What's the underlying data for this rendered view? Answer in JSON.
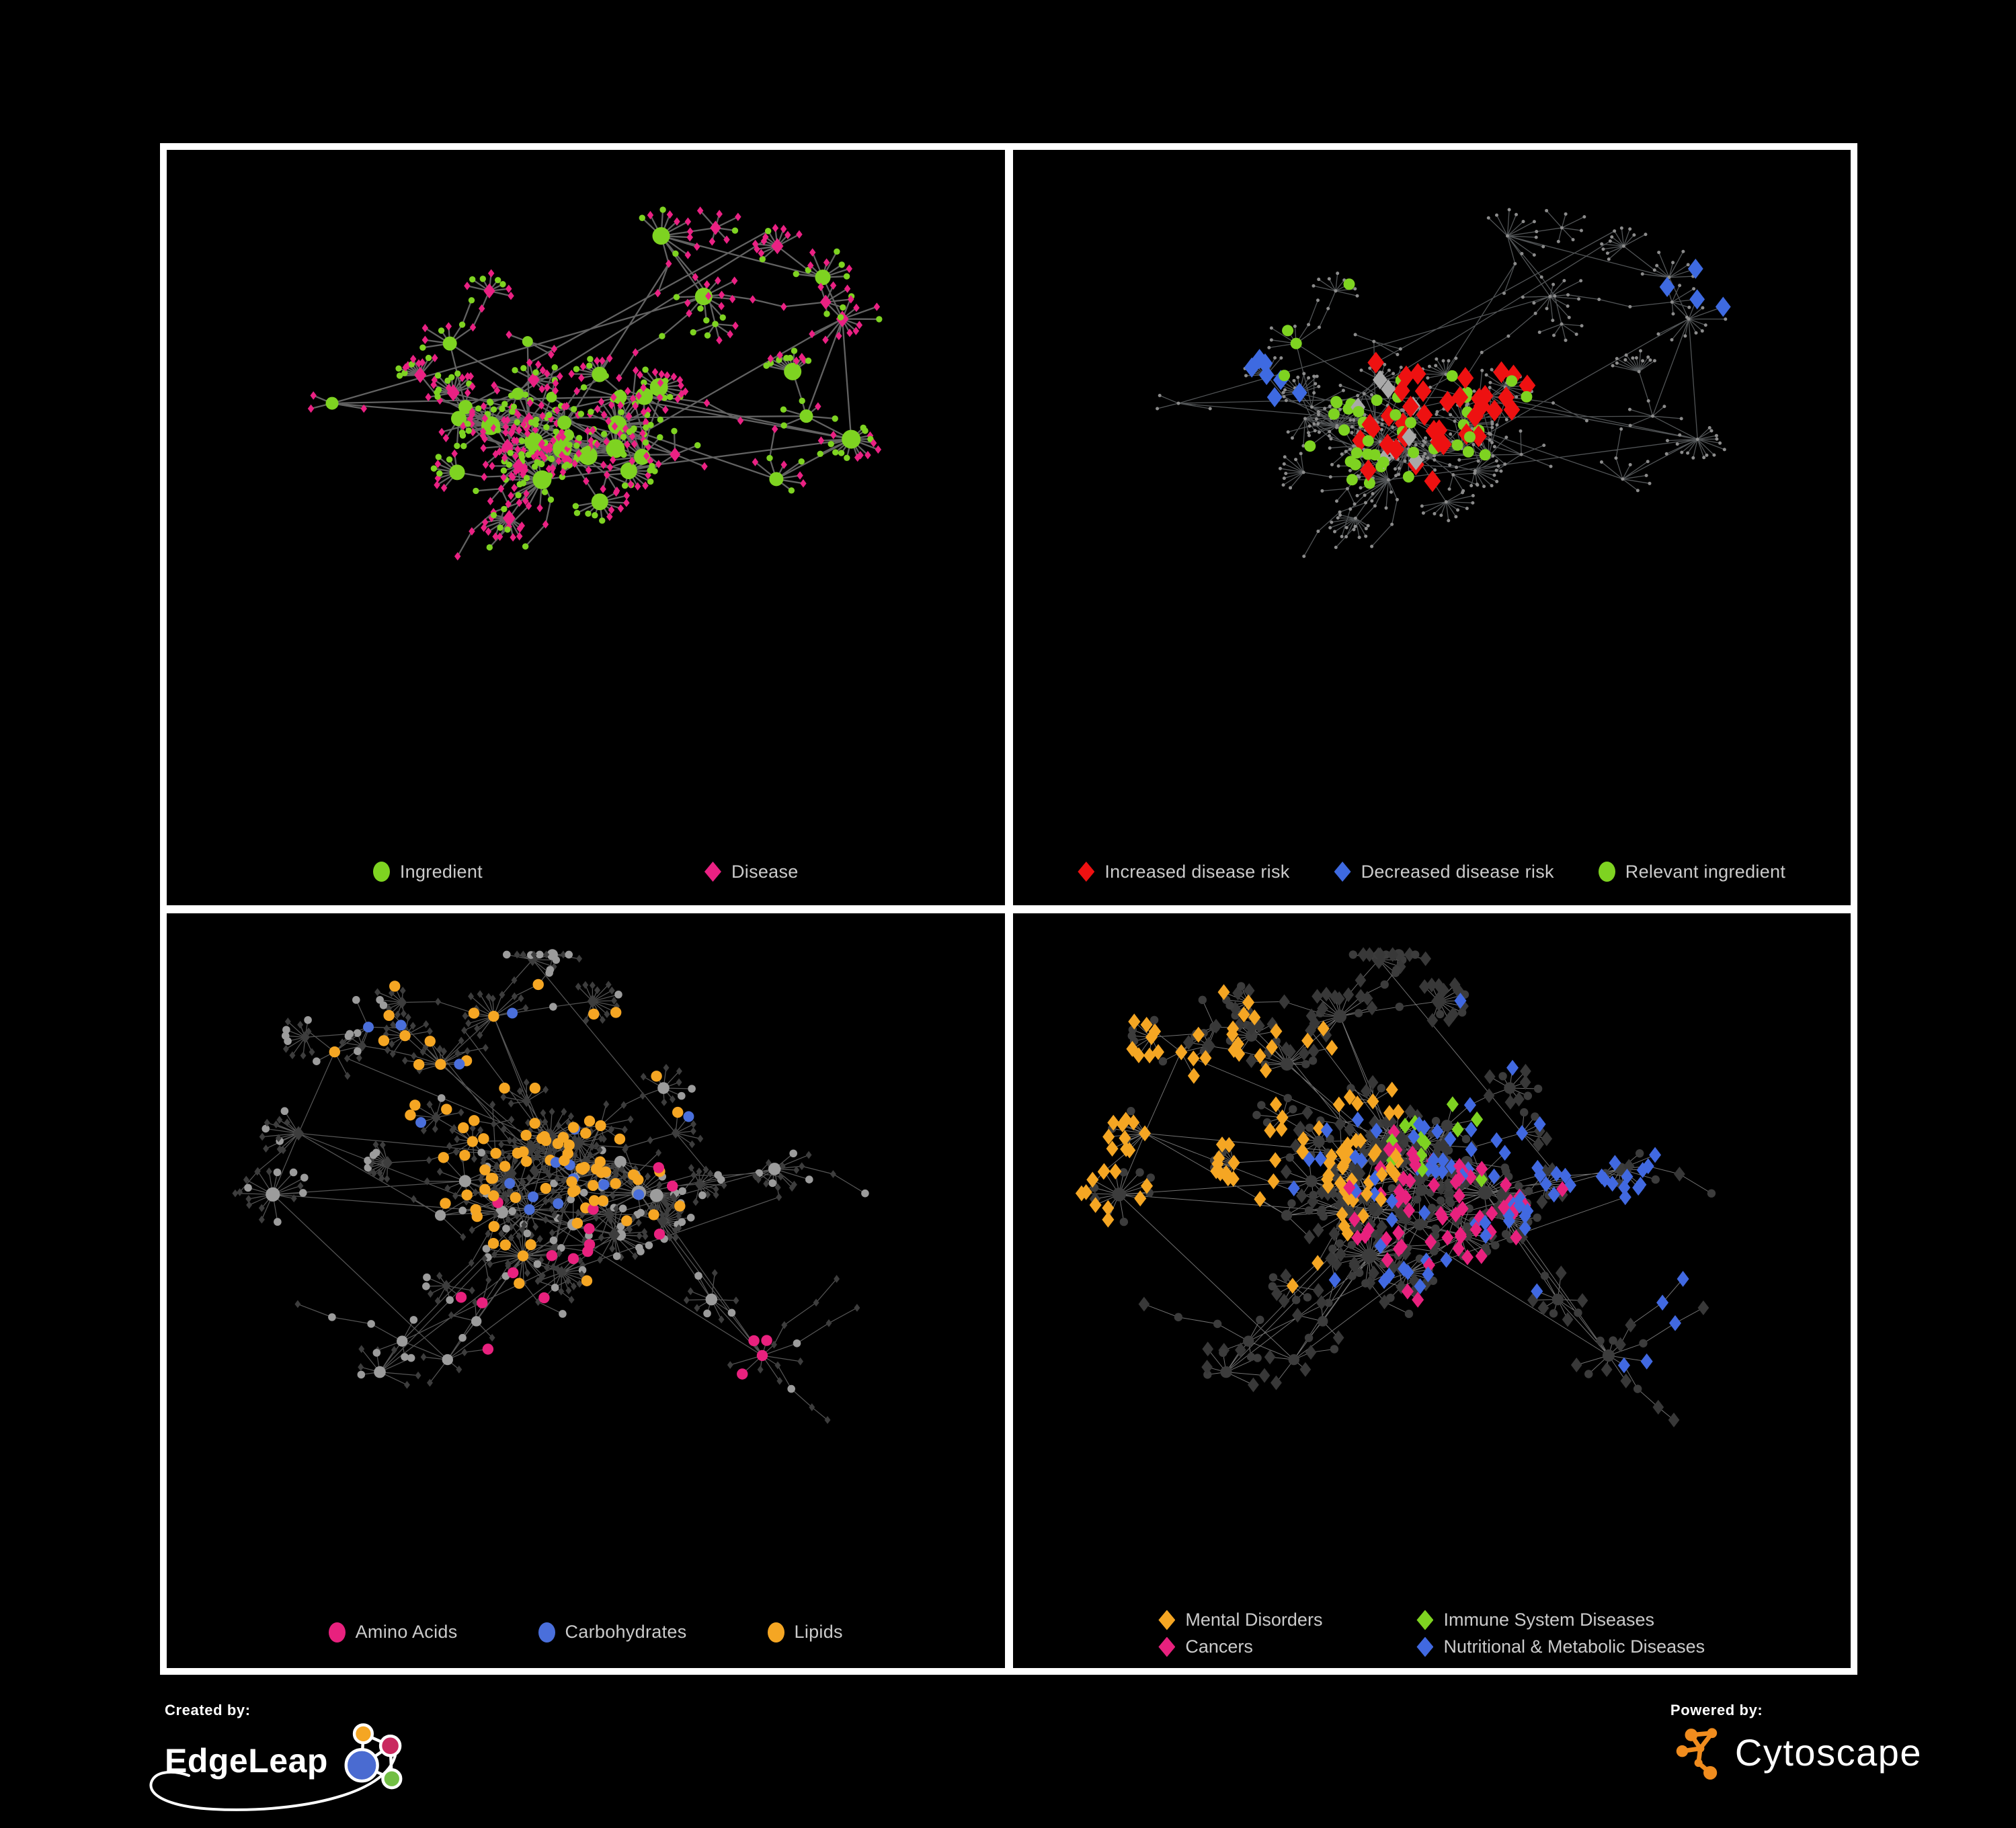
{
  "page": {
    "background": "#000000",
    "frame_color": "#ffffff",
    "panel_background": "#000000",
    "legend_text_color": "#cbcbcb"
  },
  "panels": [
    {
      "id": "ingredient-disease-network",
      "legend": {
        "items": [
          {
            "shape": "circle",
            "color": "#7ed321",
            "label": "Ingredient"
          },
          {
            "shape": "diamond",
            "color": "#ea2183",
            "label": "Disease"
          }
        ]
      },
      "viz": {
        "layout": "A",
        "seed": 21,
        "edge": {
          "color": "#6f6f6f",
          "width": 2.3,
          "opacity": 0.88
        },
        "base": {
          "circleColor": "#7ed321",
          "diamondColor": "#ea2183",
          "hubR": 6,
          "hubRDeg": 0.5,
          "hubRMax": 8,
          "leafR": 4.7,
          "hubS": 7,
          "leafS": 5
        },
        "highlights": []
      }
    },
    {
      "id": "disease-risk-network",
      "legend": {
        "items": [
          {
            "shape": "diamond",
            "color": "#ee1111",
            "label": "Increased disease risk"
          },
          {
            "shape": "diamond",
            "color": "#3e6ae1",
            "label": "Decreased disease risk"
          },
          {
            "shape": "circle",
            "color": "#7ed321",
            "label": "Relevant ingredient"
          }
        ]
      },
      "viz": {
        "layout": "A",
        "seed": 57,
        "edge": {
          "color": "#55585b",
          "width": 1.3,
          "opacity": 0.95
        },
        "base": {
          "uniform": 2.5,
          "uniformColor": "#8c8c8c"
        },
        "highlights": [
          {
            "shape": "diamond",
            "color": "#ee1111",
            "count": 38,
            "focus": [
              0.52,
              0.36
            ],
            "spread": 0.42,
            "size": 13
          },
          {
            "shape": "diamond",
            "color": "#3e6ae1",
            "count": 7,
            "focus": [
              0.26,
              0.33
            ],
            "spread": 0.1,
            "size": 12
          },
          {
            "shape": "diamond",
            "color": "#3e6ae1",
            "count": 4,
            "focus": [
              0.9,
              0.16
            ],
            "spread": 0.08,
            "size": 12
          },
          {
            "shape": "diamond",
            "color": "#a9a9a9",
            "count": 9,
            "focus": [
              0.48,
              0.38
            ],
            "spread": 0.5,
            "size": 11.5
          },
          {
            "shape": "circle",
            "color": "#7ed321",
            "count": 44,
            "focus": [
              0.44,
              0.34
            ],
            "spread": 0.42,
            "size": 8.5
          }
        ]
      }
    },
    {
      "id": "nutrient-class-network",
      "legend": {
        "items": [
          {
            "shape": "circle",
            "color": "#e8217e",
            "label": "Amino Acids"
          },
          {
            "shape": "circle",
            "color": "#4a6fdb",
            "label": "Carbohydrates"
          },
          {
            "shape": "circle",
            "color": "#f5a623",
            "label": "Lipids"
          }
        ]
      },
      "viz": {
        "layout": "B",
        "seed": 33,
        "edge": {
          "color": "#646464",
          "width": 1.25,
          "opacity": 0.85
        },
        "base": {
          "circleColor": "#9c9c9c",
          "diamondColor": "#3d3d3d",
          "hubR": 6.8,
          "hubRDeg": 0.18,
          "hubRMax": 4,
          "leafR": 5.8,
          "hubS": 5,
          "leafS": 4.7
        },
        "highlights": [
          {
            "shape": "circle",
            "color": "#f5a623",
            "count": 88,
            "focus": [
              0.4,
              0.28
            ],
            "spread": 0.3,
            "size": 8.2
          },
          {
            "shape": "circle",
            "color": "#4a6fdb",
            "count": 16,
            "focus": [
              0.4,
              0.24
            ],
            "spread": 0.22,
            "size": 8.0
          },
          {
            "shape": "circle",
            "color": "#e8217e",
            "count": 19,
            "focus": [
              0.5,
              0.62
            ],
            "spread": 0.75,
            "size": 8.2
          }
        ]
      }
    },
    {
      "id": "disease-class-network",
      "legend": {
        "items": [
          {
            "shape": "diamond",
            "color": "#f5a623",
            "label": "Mental Disorders"
          },
          {
            "shape": "diamond",
            "color": "#7ed321",
            "label": "Immune System Diseases"
          },
          {
            "shape": "diamond",
            "color": "#e8217e",
            "label": "Cancers"
          },
          {
            "shape": "diamond",
            "color": "#4169e1",
            "label": "Nutritional & Metabolic Diseases"
          }
        ]
      },
      "viz": {
        "layout": "B",
        "seed": 44,
        "edge": {
          "color": "#8d8d8d",
          "width": 1.0,
          "opacity": 0.8
        },
        "base": {
          "circleColor": "#3c3c3c",
          "diamondColor": "#383838",
          "hubR": 7,
          "hubRDeg": 0.15,
          "hubRMax": 4,
          "leafR": 6.2,
          "hubS": 8.8,
          "leafS": 8.8
        },
        "highlights": [
          {
            "shape": "diamond",
            "color": "#f5a623",
            "count": 112,
            "focus": [
              0.15,
              0.33
            ],
            "spread": 0.2,
            "size": 9.5
          },
          {
            "shape": "diamond",
            "color": "#e8217e",
            "count": 62,
            "focus": [
              0.52,
              0.47
            ],
            "spread": 0.28,
            "size": 9.5
          },
          {
            "shape": "diamond",
            "color": "#4169e1",
            "count": 86,
            "focus": [
              0.74,
              0.42
            ],
            "spread": 0.55,
            "size": 9.5
          },
          {
            "shape": "diamond",
            "color": "#7ed321",
            "count": 12,
            "focus": [
              0.5,
              0.35
            ],
            "spread": 0.9,
            "size": 9.5
          }
        ]
      }
    }
  ],
  "viz_layouts": {
    "A": {
      "seed": 7,
      "hubs": 28,
      "leafMin": 3,
      "leafMax": 24,
      "chainP": 0.13,
      "fanMax": 11,
      "cross": 0.65,
      "longLinks": 6,
      "leafDiamondP": 0.6,
      "hubDiamondP": 0.22
    },
    "B": {
      "seed": 11,
      "hubs": 38,
      "leafMin": 4,
      "leafMax": 30,
      "chainP": 0.11,
      "fanMax": 13,
      "cross": 0.75,
      "longLinks": 14,
      "leafDiamondP": 0.68,
      "hubDiamondP": 0.12
    }
  },
  "footer": {
    "created_by": {
      "label": "Created by:",
      "brand": "EdgeLeap",
      "logo_colors": {
        "orange": "#f5a623",
        "magenta": "#c9295f",
        "blue": "#4a6bd1",
        "green": "#72bf44",
        "line": "#ffffff"
      }
    },
    "powered_by": {
      "label": "Powered by:",
      "brand": "Cytoscape",
      "logo_color": "#f08c1e"
    }
  }
}
